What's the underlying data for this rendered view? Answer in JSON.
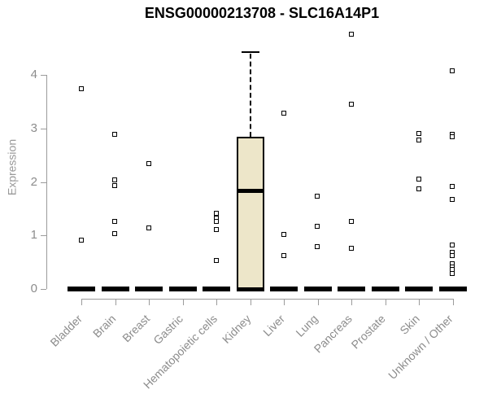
{
  "colors": {
    "box_fill": "#EDE6C9",
    "box_border": "#000000",
    "marker": "#000000",
    "axis_line": "#9B9B9B",
    "tick_label": "#8C8C8C",
    "title": "#000000"
  },
  "chart_data": {
    "type": "boxplot",
    "title": "ENSG00000213708 - SLC16A14P1",
    "ylabel": "Expression",
    "xlabel": "",
    "ylim": [
      0,
      4.8
    ],
    "yticks": [
      0,
      1,
      2,
      3,
      4
    ],
    "grid": false,
    "legend": false,
    "categories": [
      "Bladder",
      "Brain",
      "Breast",
      "Gastric",
      "Hematopoietic cells",
      "Kidney",
      "Liver",
      "Lung",
      "Pancreas",
      "Prostate",
      "Skin",
      "Unknown / Other"
    ],
    "boxes": [
      {
        "category": "Bladder",
        "median": 0,
        "q1": 0,
        "q3": 0,
        "whisker_low": 0,
        "whisker_high": 0,
        "outliers": [
          3.74,
          0.91
        ]
      },
      {
        "category": "Brain",
        "median": 0,
        "q1": 0,
        "q3": 0,
        "whisker_low": 0,
        "whisker_high": 0,
        "outliers": [
          2.88,
          2.03,
          1.92,
          1.25,
          1.03
        ]
      },
      {
        "category": "Breast",
        "median": 0,
        "q1": 0,
        "q3": 0,
        "whisker_low": 0,
        "whisker_high": 0,
        "outliers": [
          2.34,
          1.13
        ]
      },
      {
        "category": "Gastric",
        "median": 0,
        "q1": 0,
        "q3": 0,
        "whisker_low": 0,
        "whisker_high": 0,
        "outliers": []
      },
      {
        "category": "Hematopoietic cells",
        "median": 0,
        "q1": 0,
        "q3": 0,
        "whisker_low": 0,
        "whisker_high": 0,
        "outliers": [
          1.41,
          1.31,
          1.25,
          1.11,
          0.52
        ]
      },
      {
        "category": "Kidney",
        "median": 1.84,
        "q1": 0,
        "q3": 2.84,
        "whisker_low": 0,
        "whisker_high": 4.43,
        "outliers": []
      },
      {
        "category": "Liver",
        "median": 0,
        "q1": 0,
        "q3": 0,
        "whisker_low": 0,
        "whisker_high": 0,
        "outliers": [
          3.27,
          1.01,
          0.62
        ]
      },
      {
        "category": "Lung",
        "median": 0,
        "q1": 0,
        "q3": 0,
        "whisker_low": 0,
        "whisker_high": 0,
        "outliers": [
          1.72,
          1.17,
          0.78
        ]
      },
      {
        "category": "Pancreas",
        "median": 0,
        "q1": 0,
        "q3": 0,
        "whisker_low": 0,
        "whisker_high": 0,
        "outliers": [
          4.76,
          3.44,
          1.26,
          0.76
        ]
      },
      {
        "category": "Prostate",
        "median": 0,
        "q1": 0,
        "q3": 0,
        "whisker_low": 0,
        "whisker_high": 0,
        "outliers": []
      },
      {
        "category": "Skin",
        "median": 0,
        "q1": 0,
        "q3": 0,
        "whisker_low": 0,
        "whisker_high": 0,
        "outliers": [
          2.9,
          2.77,
          2.05,
          1.86
        ]
      },
      {
        "category": "Unknown / Other",
        "median": 0,
        "q1": 0,
        "q3": 0,
        "whisker_low": 0,
        "whisker_high": 0,
        "outliers": [
          4.07,
          2.88,
          2.83,
          1.91,
          1.67,
          0.81,
          0.68,
          0.61,
          0.47,
          0.41,
          0.35,
          0.28
        ]
      }
    ]
  }
}
